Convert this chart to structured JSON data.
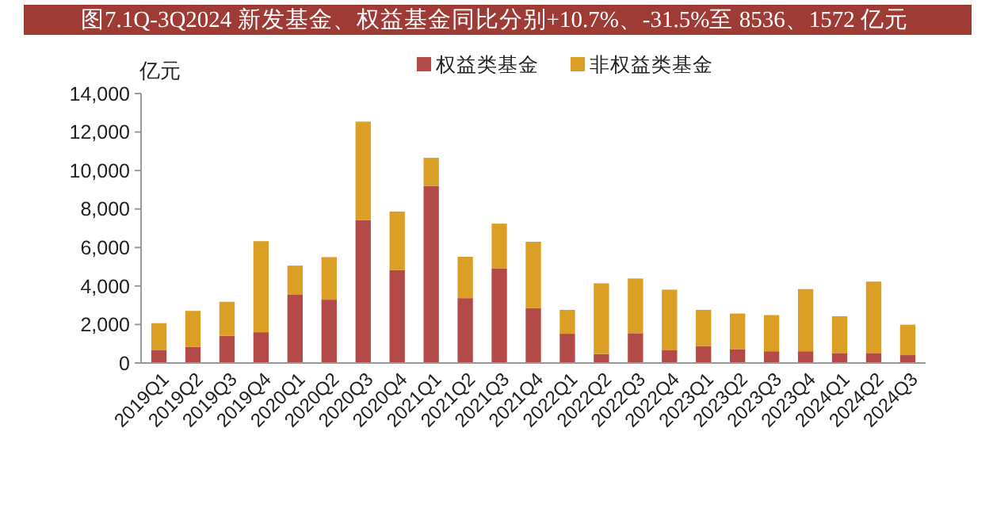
{
  "chart_data": {
    "type": "bar",
    "title": "图7.1Q-3Q2024 新发基金、权益基金同比分别+10.7%、-31.5%至 8536、1572 亿元",
    "ylabel": "亿元",
    "categories": [
      "2019Q1",
      "2019Q2",
      "2019Q3",
      "2019Q4",
      "2020Q1",
      "2020Q2",
      "2020Q3",
      "2020Q4",
      "2021Q1",
      "2021Q2",
      "2021Q3",
      "2021Q4",
      "2022Q1",
      "2022Q2",
      "2022Q3",
      "2022Q4",
      "2023Q1",
      "2023Q2",
      "2023Q3",
      "2023Q4",
      "2024Q1",
      "2024Q2",
      "2024Q3"
    ],
    "stacked": true,
    "legend": "top",
    "grid": false,
    "ylim": [
      0,
      14000
    ],
    "yticks": [
      {
        "value": 0,
        "label": "0"
      },
      {
        "value": 2000,
        "label": "2,000"
      },
      {
        "value": 4000,
        "label": "4,000"
      },
      {
        "value": 6000,
        "label": "6,000"
      },
      {
        "value": 8000,
        "label": "8,000"
      },
      {
        "value": 10000,
        "label": "10,000"
      },
      {
        "value": 12000,
        "label": "12,000"
      },
      {
        "value": 14000,
        "label": "14,000"
      }
    ],
    "series": [
      {
        "name": "权益类基金",
        "color": "#b34a48",
        "values": [
          660,
          830,
          1410,
          1600,
          3540,
          3290,
          7430,
          4830,
          9200,
          3370,
          4920,
          2850,
          1520,
          470,
          1550,
          660,
          880,
          720,
          610,
          610,
          520,
          520,
          410
        ]
      },
      {
        "name": "非权益类基金",
        "color": "#dc9f25",
        "values": [
          1410,
          1880,
          1770,
          4730,
          1520,
          2210,
          5110,
          3040,
          1460,
          2150,
          2320,
          3450,
          1240,
          3670,
          2840,
          3150,
          1880,
          1850,
          1880,
          3230,
          1910,
          3710,
          1580
        ]
      }
    ]
  }
}
